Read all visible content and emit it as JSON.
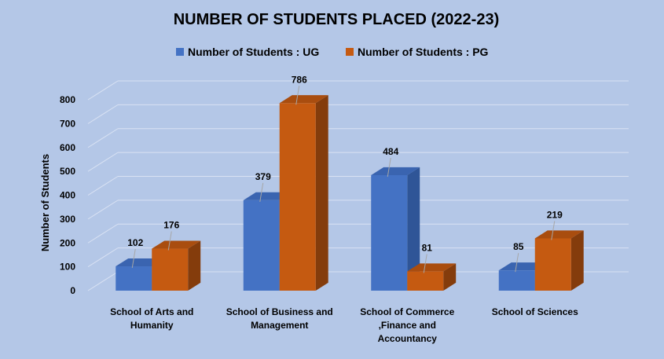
{
  "chart_data": {
    "type": "bar",
    "title": "NUMBER OF STUDENTS PLACED (2022-23)",
    "xlabel": "",
    "ylabel": "Number of Students",
    "ylim": [
      0,
      800
    ],
    "yticks": [
      0,
      100,
      200,
      300,
      400,
      500,
      600,
      700,
      800
    ],
    "categories": [
      [
        "School of Arts and",
        "Humanity"
      ],
      [
        "School of Business and",
        "Management"
      ],
      [
        "School of Commerce",
        ",Finance and",
        "Accountancy"
      ],
      [
        "School of Sciences"
      ]
    ],
    "series": [
      {
        "name": "Number of Students : UG",
        "values": [
          102,
          379,
          484,
          85
        ],
        "color": "#4472c4",
        "side_color": "#2f5597",
        "top_color": "#3a64b0"
      },
      {
        "name": "Number of Students : PG",
        "values": [
          176,
          786,
          81,
          219
        ],
        "color": "#c55a11",
        "side_color": "#843c0c",
        "top_color": "#a94d0f"
      }
    ],
    "grid": true,
    "legend_position": "top",
    "style": "3d-column"
  }
}
